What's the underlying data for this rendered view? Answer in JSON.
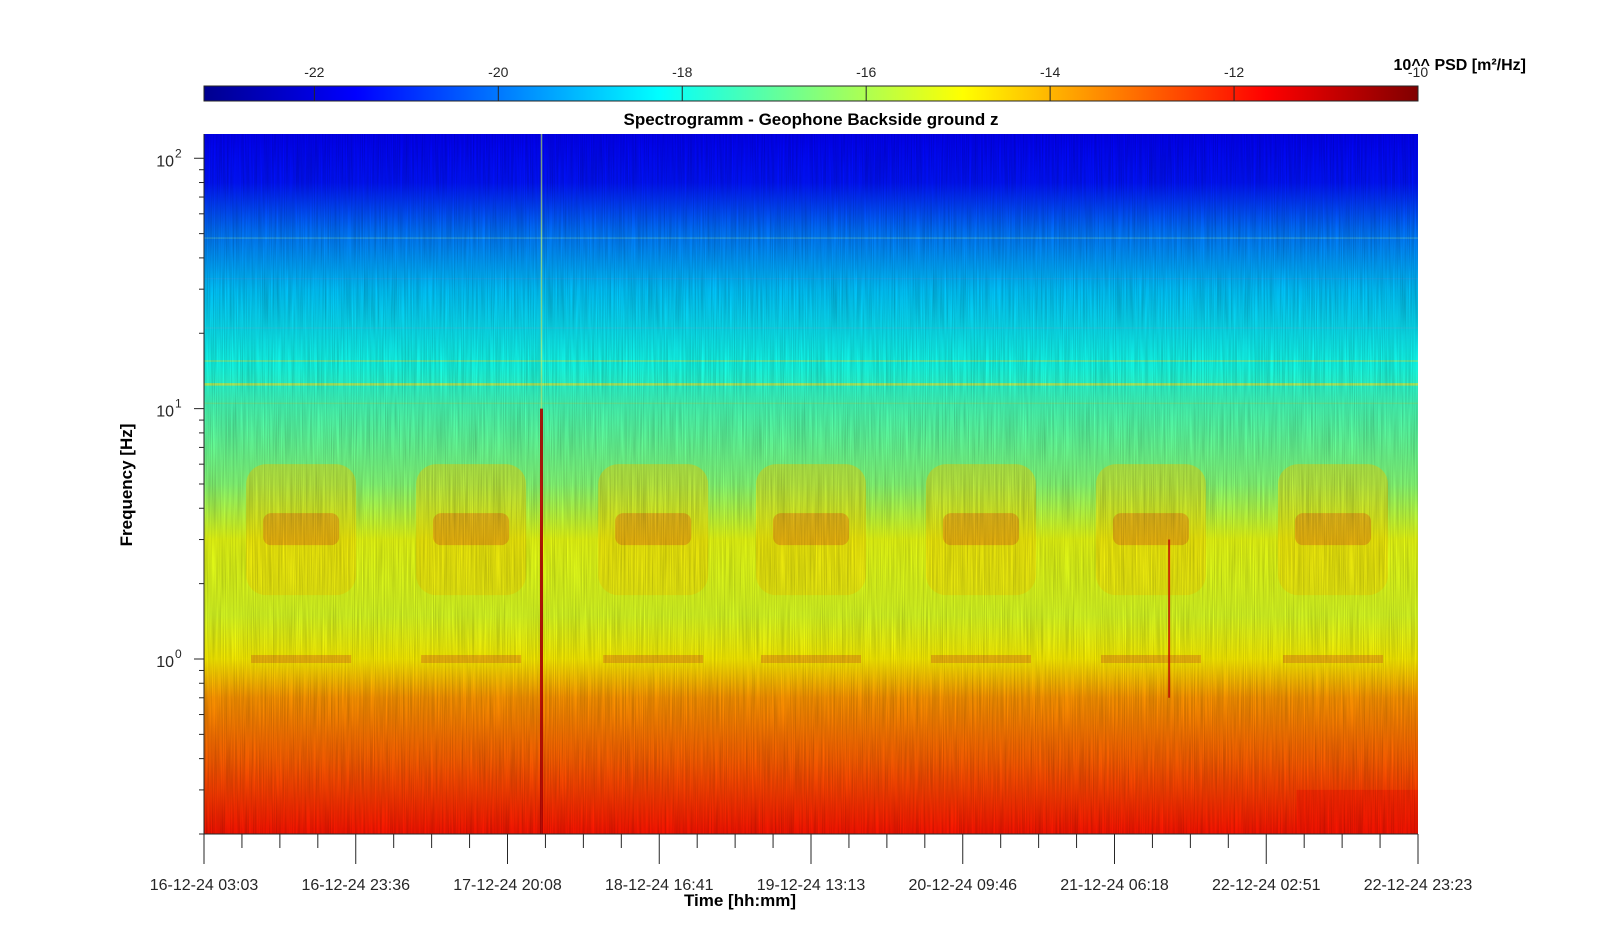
{
  "chart_data": {
    "type": "heatmap",
    "title": "Spectrogramm - Geophone Backside ground z",
    "xlabel": "Time [hh:mm]",
    "ylabel": "Frequency [Hz]",
    "y_scale": "log",
    "ylim": [
      0.2,
      125
    ],
    "x_ticks": [
      "16-12-24 03:03",
      "16-12-24 23:36",
      "17-12-24 20:08",
      "18-12-24 16:41",
      "19-12-24 13:13",
      "20-12-24 09:46",
      "21-12-24 06:18",
      "22-12-24 02:51",
      "22-12-24 23:23"
    ],
    "y_ticks": [
      {
        "value": 100,
        "label": "10",
        "exp": "2"
      },
      {
        "value": 10,
        "label": "10",
        "exp": "1"
      },
      {
        "value": 1,
        "label": "10",
        "exp": "0"
      }
    ],
    "colorbar": {
      "label": "10^^ PSD [m²/Hz]",
      "colormap": "jet",
      "range": [
        -23.2,
        -10.0
      ],
      "ticks": [
        "-22",
        "-20",
        "-18",
        "-16",
        "-14",
        "-12",
        "-10"
      ]
    },
    "psd_profile_log10": [
      {
        "f": 125,
        "v": -21.6
      },
      {
        "f": 80,
        "v": -21.3
      },
      {
        "f": 50,
        "v": -20.0
      },
      {
        "f": 30,
        "v": -19.0
      },
      {
        "f": 15,
        "v": -18.0
      },
      {
        "f": 10,
        "v": -17.3
      },
      {
        "f": 5,
        "v": -16.5
      },
      {
        "f": 3,
        "v": -15.2
      },
      {
        "f": 1.5,
        "v": -15.4
      },
      {
        "f": 1.0,
        "v": -14.8
      },
      {
        "f": 0.7,
        "v": -13.6
      },
      {
        "f": 0.4,
        "v": -12.9
      },
      {
        "f": 0.2,
        "v": -11.9
      }
    ],
    "colors": {
      "jet_dark_blue": "#00008f",
      "jet_blue": "#0000ff",
      "jet_cyan": "#00ffff",
      "jet_yellow": "#ffff00",
      "jet_red": "#ff0000",
      "jet_dark_red": "#800000"
    }
  }
}
